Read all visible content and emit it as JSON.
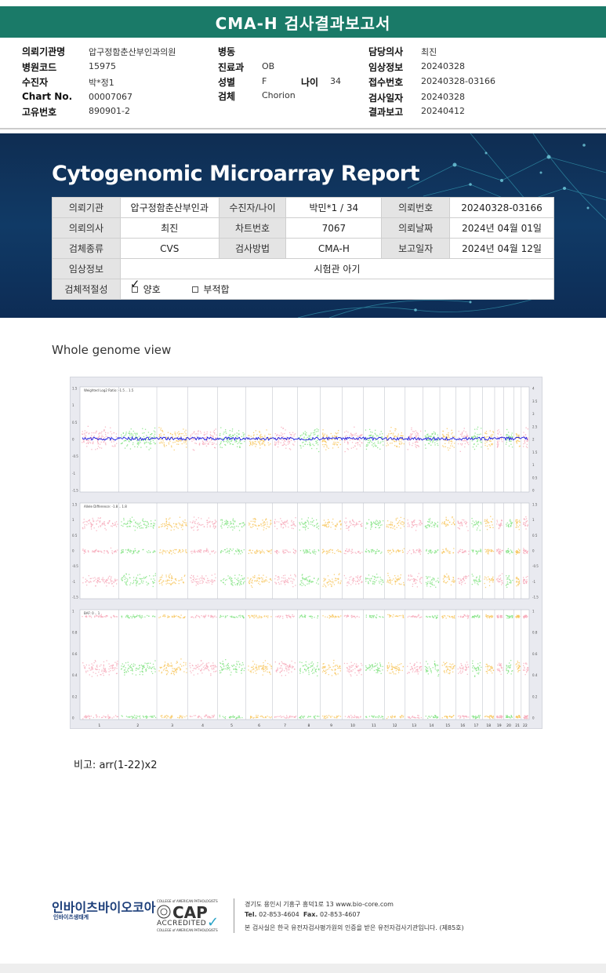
{
  "title": "CMA-H 검사결과보고서",
  "info": {
    "institution_label": "의뢰기관명",
    "institution": "압구정함춘산부인과의원",
    "hospital_code_label": "병원코드",
    "hospital_code": "15975",
    "patient_label": "수진자",
    "patient": "박*정1",
    "chart_label": "Chart No.",
    "chart": "00007067",
    "unique_label": "고유번호",
    "unique": "890901-2",
    "ward_label": "병동",
    "ward": "",
    "dept_label": "진료과",
    "dept": "OB",
    "sex_label": "성별",
    "sex": "F",
    "age_label": "나이",
    "age": "34",
    "specimen_label": "검체",
    "specimen": "Chorion",
    "doctor_label": "담당의사",
    "doctor": "최진",
    "clinical_label": "임상정보",
    "clinical": "20240328",
    "receipt_label": "접수번호",
    "receipt": "20240328-03166",
    "exam_date_label": "검사일자",
    "exam_date": "20240328",
    "report_date_label": "결과보고",
    "report_date": "20240412"
  },
  "report": {
    "title": "Cytogenomic Microarray Report",
    "rows": [
      [
        "의뢰기관",
        "압구정함춘산부인과",
        "수진자/나이",
        "박민*1 / 34",
        "의뢰번호",
        "20240328-03166"
      ],
      [
        "의뢰의사",
        "최진",
        "차트번호",
        "7067",
        "의뢰날짜",
        "2024년 04월 01일"
      ],
      [
        "검체종류",
        "CVS",
        "검사방법",
        "CMA-H",
        "보고일자",
        "2024년 04월 12일"
      ]
    ],
    "clinical_label": "임상정보",
    "clinical_value": "시험관 아기",
    "adequacy_label": "검체적절성",
    "adequacy_good": "양호",
    "adequacy_bad": "부적합"
  },
  "section_title": "Whole genome view",
  "genome_view": {
    "panels": [
      {
        "label": "Weighted Log2 Ratio: -1.5 .. 1.5",
        "left_ticks": [
          "1.5",
          "1",
          "0.5",
          "0",
          "-0.5",
          "-1",
          "-1.5"
        ],
        "right_ticks": [
          "4",
          "3.5",
          "3",
          "2.5",
          "2",
          "1.5",
          "1",
          "0.5",
          "0"
        ]
      },
      {
        "label": "Allele Difference: -1.8 .. 1.8",
        "left_ticks": [
          "1.5",
          "1",
          "0.5",
          "0",
          "-0.5",
          "-1",
          "-1.5"
        ],
        "right_ticks": [
          "1.5",
          "1",
          "0.5",
          "0",
          "-0.5",
          "-1",
          "-1.5"
        ]
      },
      {
        "label": "BAF: 0 .. 1",
        "left_ticks": [
          "1",
          "0.8",
          "0.6",
          "0.4",
          "0.2",
          "0"
        ],
        "right_ticks": [
          "1",
          "0.8",
          "0.6",
          "0.4",
          "0.2",
          "0"
        ]
      }
    ],
    "chromosomes": [
      "1",
      "2",
      "3",
      "4",
      "5",
      "6",
      "7",
      "8",
      "9",
      "10",
      "11",
      "12",
      "13",
      "14",
      "15",
      "16",
      "17",
      "18",
      "19",
      "20",
      "21",
      "22"
    ],
    "colors": [
      "#f6a8b8",
      "#7ee27e",
      "#f8c45a"
    ],
    "line_color": "#1a1ae0"
  },
  "remark_label": "비고:",
  "remark_value": "arr(1-22)x2",
  "footer": {
    "logo": "인바이츠바이오코아",
    "logo_sub": "인바이츠생태계",
    "cap_top": "COLLEGE of AMERICAN PATHOLOGISTS",
    "cap_big": "CAP",
    "cap_acc": "ACCREDITED",
    "cap_bottom": "COLLEGE of AMERICAN PATHOLOGISTS",
    "address": "경기도 용인시 기흥구 흥덕1로 13   www.bio-core.com",
    "tel_label": "Tel.",
    "tel": "02-853-4604",
    "fax_label": "Fax.",
    "fax": "02-853-4607",
    "cert": "본 검사실은 한국 유전자검사평가원의 인증을 받은 유전자검사기관입니다. (제85호)"
  }
}
